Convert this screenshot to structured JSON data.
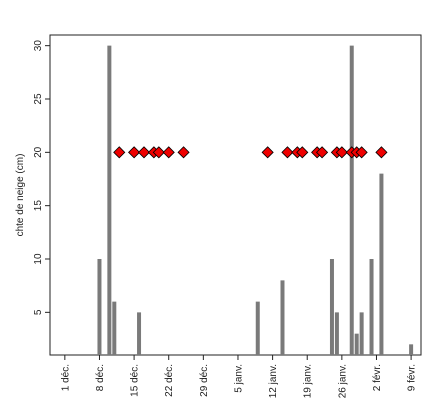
{
  "chart_data": {
    "type": "bar",
    "title": "",
    "xlabel": "",
    "ylabel": "chte de neige (cm)",
    "ylim": [
      1,
      31
    ],
    "xlim": [
      "2011-11-28",
      "2012-02-11"
    ],
    "yticks": [
      5,
      10,
      15,
      20,
      25,
      30
    ],
    "xticks": [
      {
        "date": "2011-12-01",
        "label": "1 déc."
      },
      {
        "date": "2011-12-08",
        "label": "8 déc."
      },
      {
        "date": "2011-12-15",
        "label": "15 déc."
      },
      {
        "date": "2011-12-22",
        "label": "22 déc."
      },
      {
        "date": "2011-12-29",
        "label": "29 déc."
      },
      {
        "date": "2012-01-05",
        "label": "5 janv."
      },
      {
        "date": "2012-01-12",
        "label": "12 janv."
      },
      {
        "date": "2012-01-19",
        "label": "19 janv."
      },
      {
        "date": "2012-01-26",
        "label": "26 janv."
      },
      {
        "date": "2012-02-02",
        "label": "2 févr."
      },
      {
        "date": "2012-02-09",
        "label": "9 févr."
      }
    ],
    "grid": false,
    "series": [
      {
        "kind": "bars",
        "color": "#7a7a7a",
        "points": [
          {
            "x": "2011-12-08",
            "y": 10
          },
          {
            "x": "2011-12-10",
            "y": 30
          },
          {
            "x": "2011-12-11",
            "y": 6
          },
          {
            "x": "2011-12-16",
            "y": 5
          },
          {
            "x": "2012-01-09",
            "y": 6
          },
          {
            "x": "2012-01-14",
            "y": 8
          },
          {
            "x": "2012-01-24",
            "y": 10
          },
          {
            "x": "2012-01-25",
            "y": 5
          },
          {
            "x": "2012-01-28",
            "y": 30
          },
          {
            "x": "2012-01-29",
            "y": 3
          },
          {
            "x": "2012-01-30",
            "y": 5
          },
          {
            "x": "2012-02-01",
            "y": 10
          },
          {
            "x": "2012-02-03",
            "y": 18
          },
          {
            "x": "2012-02-09",
            "y": 2
          }
        ]
      },
      {
        "kind": "markers",
        "marker": "diamond",
        "color": "#ee0000",
        "points": [
          {
            "x": "2011-12-12",
            "y": 20
          },
          {
            "x": "2011-12-15",
            "y": 20
          },
          {
            "x": "2011-12-17",
            "y": 20
          },
          {
            "x": "2011-12-19",
            "y": 20
          },
          {
            "x": "2011-12-20",
            "y": 20
          },
          {
            "x": "2011-12-22",
            "y": 20
          },
          {
            "x": "2011-12-25",
            "y": 20
          },
          {
            "x": "2012-01-11",
            "y": 20
          },
          {
            "x": "2012-01-15",
            "y": 20
          },
          {
            "x": "2012-01-17",
            "y": 20
          },
          {
            "x": "2012-01-18",
            "y": 20
          },
          {
            "x": "2012-01-21",
            "y": 20
          },
          {
            "x": "2012-01-22",
            "y": 20
          },
          {
            "x": "2012-01-25",
            "y": 20
          },
          {
            "x": "2012-01-26",
            "y": 20
          },
          {
            "x": "2012-01-28",
            "y": 20
          },
          {
            "x": "2012-01-29",
            "y": 20
          },
          {
            "x": "2012-01-30",
            "y": 20
          },
          {
            "x": "2012-02-03",
            "y": 20
          }
        ]
      }
    ]
  }
}
